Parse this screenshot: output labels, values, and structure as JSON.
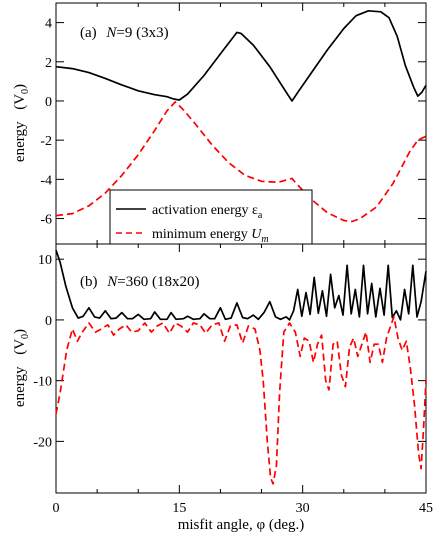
{
  "figure": {
    "xlabel": "misfit angle, φ (deg.)",
    "x_ticks": [
      "0",
      "15",
      "30",
      "45"
    ]
  },
  "chart_data": [
    {
      "type": "line",
      "panel_label": "(a)",
      "title_prefix": "N",
      "title_suffix": "=9 (3x3)",
      "ylabel": "energy",
      "ylabel_unit": "(V",
      "ylabel_unit_sub": "0",
      "ylabel_unit_close": ")",
      "xlim": [
        0,
        45
      ],
      "ylim": [
        -7.3,
        5
      ],
      "y_ticks": [
        4,
        2,
        0,
        -2,
        -4,
        -6
      ],
      "y_tick_labels": [
        "4",
        "2",
        "0",
        "-2",
        "-4",
        "-6"
      ],
      "legend_position": "lower-left",
      "legend_entries": [
        {
          "text": "activation energy ε",
          "sub": "a",
          "italic_sub": false
        },
        {
          "text": "minimum energy ",
          "sub": "m",
          "main_italic": "U",
          "italic_sub": true
        }
      ],
      "series": [
        {
          "name": "activation energy εa",
          "color": "#000000",
          "dash": "solid",
          "points": [
            [
              0,
              1.75
            ],
            [
              2,
              1.65
            ],
            [
              4,
              1.45
            ],
            [
              6,
              1.15
            ],
            [
              8,
              0.82
            ],
            [
              10,
              0.52
            ],
            [
              12,
              0.32
            ],
            [
              13.5,
              0.22
            ],
            [
              14.3,
              0.1
            ],
            [
              15,
              0.05
            ],
            [
              16,
              0.35
            ],
            [
              18,
              1.3
            ],
            [
              20,
              2.4
            ],
            [
              22,
              3.5
            ],
            [
              22.5,
              3.45
            ],
            [
              24,
              2.85
            ],
            [
              26,
              1.75
            ],
            [
              28,
              0.45
            ],
            [
              28.7,
              0.0
            ],
            [
              29.5,
              0.5
            ],
            [
              31,
              1.4
            ],
            [
              33,
              2.6
            ],
            [
              35,
              3.7
            ],
            [
              36.5,
              4.35
            ],
            [
              38,
              4.6
            ],
            [
              39.5,
              4.55
            ],
            [
              40.5,
              4.25
            ],
            [
              41.5,
              3.3
            ],
            [
              42.5,
              1.8
            ],
            [
              43.5,
              0.7
            ],
            [
              44,
              0.25
            ],
            [
              44.5,
              0.45
            ],
            [
              45,
              0.8
            ]
          ]
        },
        {
          "name": "minimum energy Um",
          "color": "#ff0000",
          "dash": "dashed",
          "points": [
            [
              0,
              -5.85
            ],
            [
              2,
              -5.75
            ],
            [
              4,
              -5.35
            ],
            [
              6,
              -4.7
            ],
            [
              8,
              -3.8
            ],
            [
              10,
              -2.75
            ],
            [
              12,
              -1.5
            ],
            [
              13.5,
              -0.5
            ],
            [
              14.5,
              -0.05
            ],
            [
              15.5,
              -0.45
            ],
            [
              17,
              -1.2
            ],
            [
              19,
              -2.25
            ],
            [
              21,
              -3.15
            ],
            [
              23,
              -3.8
            ],
            [
              25,
              -4.1
            ],
            [
              27,
              -4.15
            ],
            [
              28.3,
              -4.0
            ],
            [
              28.7,
              -3.95
            ],
            [
              29.2,
              -4.2
            ],
            [
              31,
              -5.0
            ],
            [
              33,
              -5.7
            ],
            [
              35,
              -6.1
            ],
            [
              36,
              -6.15
            ],
            [
              37,
              -6.0
            ],
            [
              39,
              -5.4
            ],
            [
              41,
              -4.2
            ],
            [
              43,
              -2.6
            ],
            [
              44,
              -2.0
            ],
            [
              45,
              -1.8
            ]
          ]
        }
      ]
    },
    {
      "type": "line",
      "panel_label": "(b)",
      "title_prefix": "N",
      "title_suffix": "=360 (18x20)",
      "ylabel": "energy",
      "ylabel_unit": "(V",
      "ylabel_unit_sub": "0",
      "ylabel_unit_close": ")",
      "xlim": [
        0,
        45
      ],
      "ylim": [
        -28.5,
        12.5
      ],
      "y_ticks": [
        10,
        0,
        -10,
        -20
      ],
      "y_tick_labels": [
        "10",
        "0",
        "-10",
        "-20"
      ],
      "series": [
        {
          "name": "activation energy εa",
          "color": "#000000",
          "dash": "solid",
          "points": [
            [
              0,
              11.5
            ],
            [
              0.5,
              9.5
            ],
            [
              1.2,
              5.5
            ],
            [
              2.0,
              2.0
            ],
            [
              2.7,
              0.3
            ],
            [
              3.3,
              0.6
            ],
            [
              4,
              2.0
            ],
            [
              4.7,
              0.5
            ],
            [
              5.3,
              0.3
            ],
            [
              6,
              1.5
            ],
            [
              6.7,
              0.2
            ],
            [
              7.3,
              0.3
            ],
            [
              8,
              1.2
            ],
            [
              8.7,
              0.2
            ],
            [
              9.3,
              0.2
            ],
            [
              10,
              0.9
            ],
            [
              10.7,
              0.1
            ],
            [
              11.5,
              0.2
            ],
            [
              12,
              1.3
            ],
            [
              12.7,
              0.1
            ],
            [
              13.5,
              0.1
            ],
            [
              14,
              1.2
            ],
            [
              14.6,
              0.1
            ],
            [
              15.5,
              0.2
            ],
            [
              16,
              0.6
            ],
            [
              16.7,
              0.1
            ],
            [
              17.5,
              0.2
            ],
            [
              18,
              1.0
            ],
            [
              18.7,
              0.2
            ],
            [
              19.3,
              0.2
            ],
            [
              20,
              2.0
            ],
            [
              20.6,
              0.1
            ],
            [
              21.3,
              0.3
            ],
            [
              22,
              2.8
            ],
            [
              22.7,
              0.4
            ],
            [
              23.3,
              0.2
            ],
            [
              24,
              0.8
            ],
            [
              24.6,
              0.1
            ],
            [
              25.3,
              1.2
            ],
            [
              26,
              3.0
            ],
            [
              26.7,
              0.5
            ],
            [
              27.3,
              0.1
            ],
            [
              28,
              0.5
            ],
            [
              28.4,
              0.0
            ],
            [
              28.9,
              1.5
            ],
            [
              29.4,
              5.0
            ],
            [
              29.9,
              0.6
            ],
            [
              30.4,
              4.5
            ],
            [
              30.9,
              0.9
            ],
            [
              31.4,
              7.0
            ],
            [
              31.9,
              1.1
            ],
            [
              32.4,
              4.8
            ],
            [
              32.9,
              0.6
            ],
            [
              33.4,
              7.5
            ],
            [
              33.9,
              2.0
            ],
            [
              34.4,
              4.0
            ],
            [
              34.9,
              0.8
            ],
            [
              35.4,
              9.0
            ],
            [
              35.9,
              1.0
            ],
            [
              36.4,
              5.0
            ],
            [
              36.9,
              0.5
            ],
            [
              37.4,
              9.0
            ],
            [
              37.9,
              1.0
            ],
            [
              38.4,
              6.0
            ],
            [
              38.9,
              0.5
            ],
            [
              39.4,
              5.2
            ],
            [
              39.9,
              0.8
            ],
            [
              40.4,
              9.0
            ],
            [
              40.9,
              0.4
            ],
            [
              41.4,
              1.5
            ],
            [
              41.9,
              0.0
            ],
            [
              42.4,
              5.0
            ],
            [
              42.9,
              1.0
            ],
            [
              43.4,
              9.0
            ],
            [
              43.9,
              0.5
            ],
            [
              44.4,
              3.0
            ],
            [
              45,
              8.0
            ]
          ]
        },
        {
          "name": "minimum energy Um",
          "color": "#ff0000",
          "dash": "dashed",
          "points": [
            [
              0,
              -15.5
            ],
            [
              0.5,
              -12.0
            ],
            [
              1.3,
              -5.0
            ],
            [
              2,
              -1.5
            ],
            [
              2.6,
              -3.5
            ],
            [
              3.2,
              -2.0
            ],
            [
              4,
              -0.5
            ],
            [
              4.8,
              -2.0
            ],
            [
              5.5,
              -1.5
            ],
            [
              6.3,
              -0.8
            ],
            [
              7,
              -2.5
            ],
            [
              7.7,
              -1.5
            ],
            [
              8.5,
              -0.8
            ],
            [
              9.2,
              -2.0
            ],
            [
              10,
              -1.8
            ],
            [
              10.8,
              -0.5
            ],
            [
              11.6,
              -2.0
            ],
            [
              12.3,
              -1.0
            ],
            [
              13,
              -0.5
            ],
            [
              13.8,
              -2.2
            ],
            [
              14.5,
              -0.5
            ],
            [
              15.2,
              -1.0
            ],
            [
              16,
              -2.0
            ],
            [
              16.7,
              -0.5
            ],
            [
              17.5,
              -0.8
            ],
            [
              18.2,
              -2.2
            ],
            [
              19,
              -0.8
            ],
            [
              19.8,
              -0.5
            ],
            [
              20.5,
              -3.5
            ],
            [
              21.2,
              -1.0
            ],
            [
              22,
              -0.8
            ],
            [
              22.7,
              -3.8
            ],
            [
              23.4,
              -1.0
            ],
            [
              24.2,
              -1.5
            ],
            [
              24.8,
              -5.0
            ],
            [
              25.2,
              -10.0
            ],
            [
              25.7,
              -20.0
            ],
            [
              26.1,
              -26.0
            ],
            [
              26.4,
              -27.0
            ],
            [
              26.8,
              -24.0
            ],
            [
              27.2,
              -12.0
            ],
            [
              27.7,
              -2.0
            ],
            [
              28.4,
              -0.5
            ],
            [
              29.1,
              -2.0
            ],
            [
              29.7,
              -6.0
            ],
            [
              30.2,
              -3.0
            ],
            [
              30.8,
              -3.5
            ],
            [
              31.3,
              -7.0
            ],
            [
              31.8,
              -4.0
            ],
            [
              32.3,
              -2.5
            ],
            [
              32.8,
              -10.0
            ],
            [
              33.2,
              -11.5
            ],
            [
              33.7,
              -4.0
            ],
            [
              34.2,
              -3.5
            ],
            [
              34.7,
              -9.0
            ],
            [
              35.2,
              -11.0
            ],
            [
              35.7,
              -4.5
            ],
            [
              36.2,
              -3.0
            ],
            [
              36.7,
              -6.0
            ],
            [
              37.2,
              -4.0
            ],
            [
              37.7,
              -2.0
            ],
            [
              38.2,
              -7.0
            ],
            [
              38.7,
              -4.0
            ],
            [
              39.2,
              -4.0
            ],
            [
              39.7,
              -7.0
            ],
            [
              40.2,
              -3.0
            ],
            [
              40.7,
              -1.0
            ],
            [
              41.1,
              0.5
            ],
            [
              41.6,
              -3.0
            ],
            [
              42.1,
              -5.0
            ],
            [
              42.6,
              -3.5
            ],
            [
              43.1,
              -8.0
            ],
            [
              43.6,
              -14.0
            ],
            [
              44.1,
              -22.0
            ],
            [
              44.4,
              -24.5
            ],
            [
              44.7,
              -18.0
            ],
            [
              45,
              -10.0
            ]
          ]
        }
      ]
    }
  ]
}
